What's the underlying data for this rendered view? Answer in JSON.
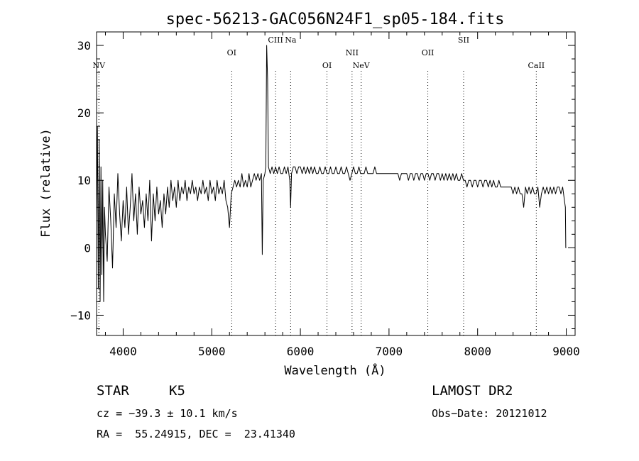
{
  "chart_data": {
    "type": "line",
    "title": "spec-56213-GAC056N24F1_sp05-184.fits",
    "xlabel": "Wavelength (Å)",
    "ylabel": "Flux (relative)",
    "xlim": [
      3700,
      9100
    ],
    "ylim": [
      -13,
      32
    ],
    "xticks": [
      4000,
      5000,
      6000,
      7000,
      8000,
      9000
    ],
    "yticks": [
      -10,
      0,
      10,
      20,
      30
    ],
    "grid": false,
    "series": [
      {
        "points": [
          [
            3700,
            4
          ],
          [
            3710,
            18
          ],
          [
            3720,
            -6
          ],
          [
            3730,
            16
          ],
          [
            3740,
            -8
          ],
          [
            3750,
            12
          ],
          [
            3760,
            -4
          ],
          [
            3770,
            10
          ],
          [
            3780,
            -8
          ],
          [
            3790,
            6
          ],
          [
            3800,
            2
          ],
          [
            3820,
            -2
          ],
          [
            3840,
            9
          ],
          [
            3860,
            4
          ],
          [
            3880,
            -3
          ],
          [
            3900,
            8
          ],
          [
            3920,
            3
          ],
          [
            3940,
            11
          ],
          [
            3960,
            5
          ],
          [
            3980,
            1
          ],
          [
            4000,
            7
          ],
          [
            4020,
            3
          ],
          [
            4040,
            9
          ],
          [
            4060,
            2
          ],
          [
            4080,
            6
          ],
          [
            4100,
            11
          ],
          [
            4120,
            4
          ],
          [
            4140,
            8
          ],
          [
            4160,
            2
          ],
          [
            4180,
            9
          ],
          [
            4200,
            5
          ],
          [
            4220,
            7
          ],
          [
            4240,
            3
          ],
          [
            4260,
            8
          ],
          [
            4280,
            4
          ],
          [
            4300,
            10
          ],
          [
            4320,
            1
          ],
          [
            4340,
            8
          ],
          [
            4360,
            4
          ],
          [
            4380,
            9
          ],
          [
            4400,
            5
          ],
          [
            4420,
            7
          ],
          [
            4440,
            3
          ],
          [
            4460,
            8
          ],
          [
            4480,
            5
          ],
          [
            4500,
            9
          ],
          [
            4520,
            6
          ],
          [
            4540,
            10
          ],
          [
            4560,
            7
          ],
          [
            4580,
            9
          ],
          [
            4600,
            6
          ],
          [
            4620,
            10
          ],
          [
            4640,
            7
          ],
          [
            4660,
            9
          ],
          [
            4680,
            8
          ],
          [
            4700,
            10
          ],
          [
            4720,
            7
          ],
          [
            4740,
            9
          ],
          [
            4760,
            8
          ],
          [
            4780,
            10
          ],
          [
            4800,
            8
          ],
          [
            4820,
            9
          ],
          [
            4840,
            7
          ],
          [
            4860,
            9
          ],
          [
            4880,
            8
          ],
          [
            4900,
            10
          ],
          [
            4920,
            8
          ],
          [
            4940,
            9
          ],
          [
            4960,
            7
          ],
          [
            4980,
            10
          ],
          [
            5000,
            8
          ],
          [
            5020,
            9
          ],
          [
            5040,
            7
          ],
          [
            5060,
            10
          ],
          [
            5080,
            8
          ],
          [
            5100,
            9
          ],
          [
            5120,
            8
          ],
          [
            5140,
            10
          ],
          [
            5160,
            7
          ],
          [
            5180,
            6
          ],
          [
            5200,
            3
          ],
          [
            5220,
            8
          ],
          [
            5240,
            9
          ],
          [
            5260,
            10
          ],
          [
            5280,
            9
          ],
          [
            5300,
            10
          ],
          [
            5320,
            9
          ],
          [
            5340,
            11
          ],
          [
            5360,
            9
          ],
          [
            5380,
            10
          ],
          [
            5400,
            9
          ],
          [
            5420,
            11
          ],
          [
            5440,
            9
          ],
          [
            5460,
            10
          ],
          [
            5480,
            11
          ],
          [
            5500,
            10
          ],
          [
            5520,
            11
          ],
          [
            5540,
            10
          ],
          [
            5560,
            11
          ],
          [
            5570,
            -1
          ],
          [
            5580,
            10
          ],
          [
            5600,
            11
          ],
          [
            5610,
            12
          ],
          [
            5620,
            30
          ],
          [
            5630,
            25
          ],
          [
            5640,
            12
          ],
          [
            5660,
            11
          ],
          [
            5680,
            12
          ],
          [
            5700,
            11
          ],
          [
            5720,
            12
          ],
          [
            5740,
            11
          ],
          [
            5760,
            12
          ],
          [
            5780,
            11
          ],
          [
            5800,
            11
          ],
          [
            5820,
            12
          ],
          [
            5840,
            11
          ],
          [
            5860,
            12
          ],
          [
            5880,
            10
          ],
          [
            5890,
            6
          ],
          [
            5900,
            11
          ],
          [
            5920,
            12
          ],
          [
            5940,
            12
          ],
          [
            5960,
            11
          ],
          [
            5980,
            12
          ],
          [
            6000,
            12
          ],
          [
            6020,
            11
          ],
          [
            6040,
            12
          ],
          [
            6060,
            11
          ],
          [
            6080,
            12
          ],
          [
            6100,
            11
          ],
          [
            6120,
            12
          ],
          [
            6140,
            11
          ],
          [
            6160,
            12
          ],
          [
            6180,
            11
          ],
          [
            6200,
            11
          ],
          [
            6220,
            12
          ],
          [
            6240,
            11
          ],
          [
            6260,
            11
          ],
          [
            6280,
            12
          ],
          [
            6300,
            11
          ],
          [
            6320,
            11
          ],
          [
            6340,
            12
          ],
          [
            6360,
            11
          ],
          [
            6380,
            11
          ],
          [
            6400,
            12
          ],
          [
            6420,
            11
          ],
          [
            6440,
            11
          ],
          [
            6460,
            12
          ],
          [
            6480,
            11
          ],
          [
            6500,
            11
          ],
          [
            6520,
            12
          ],
          [
            6540,
            11
          ],
          [
            6560,
            10
          ],
          [
            6580,
            11
          ],
          [
            6600,
            12
          ],
          [
            6620,
            11
          ],
          [
            6640,
            11
          ],
          [
            6660,
            12
          ],
          [
            6680,
            11
          ],
          [
            6700,
            11
          ],
          [
            6720,
            11
          ],
          [
            6740,
            12
          ],
          [
            6760,
            11
          ],
          [
            6780,
            11
          ],
          [
            6800,
            11
          ],
          [
            6820,
            11
          ],
          [
            6840,
            12
          ],
          [
            6860,
            11
          ],
          [
            6880,
            11
          ],
          [
            6900,
            11
          ],
          [
            6920,
            11
          ],
          [
            6940,
            11
          ],
          [
            6960,
            11
          ],
          [
            6980,
            11
          ],
          [
            7000,
            11
          ],
          [
            7020,
            11
          ],
          [
            7040,
            11
          ],
          [
            7060,
            11
          ],
          [
            7080,
            11
          ],
          [
            7100,
            11
          ],
          [
            7120,
            10
          ],
          [
            7140,
            11
          ],
          [
            7160,
            11
          ],
          [
            7180,
            11
          ],
          [
            7200,
            11
          ],
          [
            7220,
            10
          ],
          [
            7240,
            11
          ],
          [
            7260,
            11
          ],
          [
            7280,
            10
          ],
          [
            7300,
            11
          ],
          [
            7320,
            11
          ],
          [
            7340,
            10
          ],
          [
            7360,
            11
          ],
          [
            7380,
            11
          ],
          [
            7400,
            10
          ],
          [
            7420,
            11
          ],
          [
            7440,
            11
          ],
          [
            7460,
            10
          ],
          [
            7480,
            11
          ],
          [
            7500,
            11
          ],
          [
            7520,
            10
          ],
          [
            7540,
            11
          ],
          [
            7560,
            11
          ],
          [
            7580,
            10
          ],
          [
            7600,
            11
          ],
          [
            7620,
            10
          ],
          [
            7640,
            11
          ],
          [
            7660,
            10
          ],
          [
            7680,
            11
          ],
          [
            7700,
            10
          ],
          [
            7720,
            11
          ],
          [
            7740,
            10
          ],
          [
            7760,
            11
          ],
          [
            7780,
            10
          ],
          [
            7800,
            10
          ],
          [
            7820,
            11
          ],
          [
            7840,
            10
          ],
          [
            7860,
            10
          ],
          [
            7880,
            9
          ],
          [
            7900,
            10
          ],
          [
            7920,
            10
          ],
          [
            7940,
            9
          ],
          [
            7960,
            10
          ],
          [
            7980,
            10
          ],
          [
            8000,
            9
          ],
          [
            8020,
            10
          ],
          [
            8040,
            10
          ],
          [
            8060,
            9
          ],
          [
            8080,
            10
          ],
          [
            8100,
            10
          ],
          [
            8120,
            9
          ],
          [
            8140,
            10
          ],
          [
            8160,
            9
          ],
          [
            8180,
            10
          ],
          [
            8200,
            9
          ],
          [
            8220,
            9
          ],
          [
            8240,
            10
          ],
          [
            8260,
            9
          ],
          [
            8280,
            9
          ],
          [
            8300,
            9
          ],
          [
            8320,
            9
          ],
          [
            8340,
            9
          ],
          [
            8360,
            9
          ],
          [
            8380,
            9
          ],
          [
            8400,
            8
          ],
          [
            8420,
            9
          ],
          [
            8440,
            8
          ],
          [
            8460,
            9
          ],
          [
            8480,
            8
          ],
          [
            8500,
            8
          ],
          [
            8520,
            6
          ],
          [
            8540,
            9
          ],
          [
            8560,
            8
          ],
          [
            8580,
            9
          ],
          [
            8600,
            8
          ],
          [
            8620,
            9
          ],
          [
            8640,
            8
          ],
          [
            8660,
            8
          ],
          [
            8680,
            9
          ],
          [
            8700,
            6
          ],
          [
            8720,
            8
          ],
          [
            8740,
            9
          ],
          [
            8760,
            8
          ],
          [
            8780,
            9
          ],
          [
            8800,
            8
          ],
          [
            8820,
            9
          ],
          [
            8840,
            8
          ],
          [
            8860,
            9
          ],
          [
            8880,
            8
          ],
          [
            8900,
            9
          ],
          [
            8920,
            9
          ],
          [
            8940,
            8
          ],
          [
            8960,
            9
          ],
          [
            8980,
            7
          ],
          [
            8990,
            6
          ],
          [
            8995,
            0
          ],
          [
            9000,
            0
          ]
        ]
      }
    ],
    "line_markers": [
      {
        "label": "NV",
        "wavelength": 3726,
        "row": 3
      },
      {
        "label": "OI",
        "wavelength": 5225,
        "row": 1
      },
      {
        "label": "CIII",
        "wavelength": 5720,
        "row": 0
      },
      {
        "label": "Na",
        "wavelength": 5890,
        "row": 0
      },
      {
        "label": "OI",
        "wavelength": 6300,
        "row": 3
      },
      {
        "label": "NII",
        "wavelength": 6583,
        "row": 1
      },
      {
        "label": "NeV",
        "wavelength": 6686,
        "row": 3
      },
      {
        "label": "OII",
        "wavelength": 7438,
        "row": 1
      },
      {
        "label": "SII",
        "wavelength": 7842,
        "row": 0
      },
      {
        "label": "CaII",
        "wavelength": 8662,
        "row": 3
      }
    ]
  },
  "info": {
    "object_class": "STAR",
    "subclass": "K5",
    "survey": "LAMOST DR2",
    "cz": "cz = −39.3 ± 10.1 km/s",
    "obs_date": "Obs−Date: 20121012",
    "coords": "RA =  55.24915, DEC =  23.41340"
  }
}
